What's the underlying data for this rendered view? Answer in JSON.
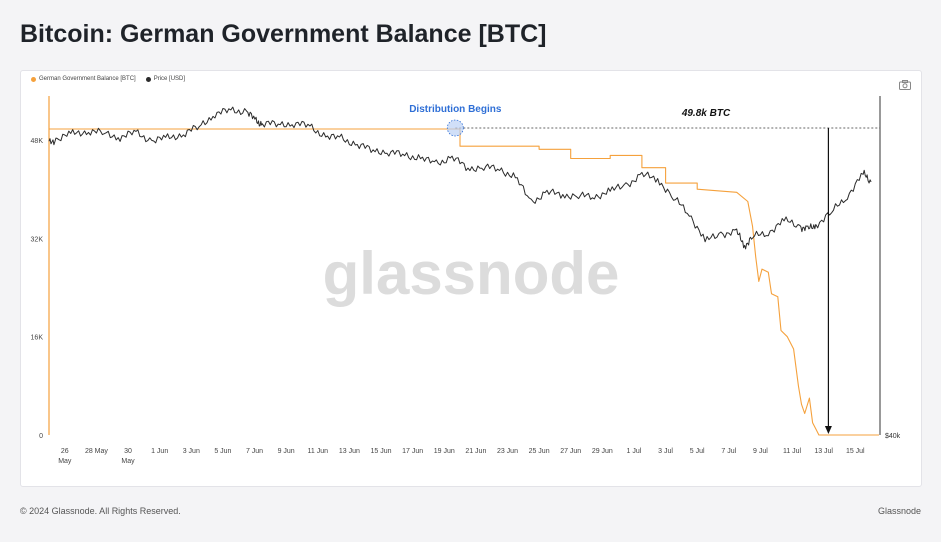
{
  "page": {
    "title": "Bitcoin: German Government Balance [BTC]"
  },
  "footer": {
    "copyright": "© 2024 Glassnode. All Rights Reserved.",
    "brand": "Glassnode"
  },
  "icons": {
    "camera": "camera-icon"
  },
  "colors": {
    "balance": "#f5a13c",
    "price": "#2b2b2b",
    "annotation": "#2f6fd6",
    "watermark": "#d9d9d9"
  },
  "chart_data": {
    "type": "line",
    "watermark": "glassnode",
    "legend": [
      "German Government Balance [BTC]",
      "Price [USD]"
    ],
    "left_axis": {
      "ticks": [
        {
          "value": 0,
          "label": "0"
        },
        {
          "value": 16000,
          "label": "16K"
        },
        {
          "value": 32000,
          "label": "32K"
        },
        {
          "value": 48000,
          "label": "48K"
        }
      ],
      "ylim": [
        0,
        56000
      ]
    },
    "right_axis": {
      "visible_label": "$40k"
    },
    "x_ticks": [
      {
        "day": 0.5,
        "label": "26",
        "sub": "May"
      },
      {
        "day": 2.5,
        "label": "28 May",
        "sub": ""
      },
      {
        "day": 4.5,
        "label": "30",
        "sub": "May"
      },
      {
        "day": 6.5,
        "label": "1 Jun",
        "sub": ""
      },
      {
        "day": 8.5,
        "label": "3 Jun",
        "sub": ""
      },
      {
        "day": 10.5,
        "label": "5 Jun",
        "sub": ""
      },
      {
        "day": 12.5,
        "label": "7 Jun",
        "sub": ""
      },
      {
        "day": 14.5,
        "label": "9 Jun",
        "sub": ""
      },
      {
        "day": 16.5,
        "label": "11 Jun",
        "sub": ""
      },
      {
        "day": 18.5,
        "label": "13 Jun",
        "sub": ""
      },
      {
        "day": 20.5,
        "label": "15 Jun",
        "sub": ""
      },
      {
        "day": 22.5,
        "label": "17 Jun",
        "sub": ""
      },
      {
        "day": 24.5,
        "label": "19 Jun",
        "sub": ""
      },
      {
        "day": 26.5,
        "label": "21 Jun",
        "sub": ""
      },
      {
        "day": 28.5,
        "label": "23 Jun",
        "sub": ""
      },
      {
        "day": 30.5,
        "label": "25 Jun",
        "sub": ""
      },
      {
        "day": 32.5,
        "label": "27 Jun",
        "sub": ""
      },
      {
        "day": 34.5,
        "label": "29 Jun",
        "sub": ""
      },
      {
        "day": 36.5,
        "label": "1 Jul",
        "sub": ""
      },
      {
        "day": 38.5,
        "label": "3 Jul",
        "sub": ""
      },
      {
        "day": 40.5,
        "label": "5 Jul",
        "sub": ""
      },
      {
        "day": 42.5,
        "label": "7 Jul",
        "sub": ""
      },
      {
        "day": 44.5,
        "label": "9 Jul",
        "sub": ""
      },
      {
        "day": 46.5,
        "label": "11 Jul",
        "sub": ""
      },
      {
        "day": 48.5,
        "label": "13 Jul",
        "sub": ""
      },
      {
        "day": 50.5,
        "label": "15 Jul",
        "sub": ""
      }
    ],
    "series": [
      {
        "name": "German Government Balance [BTC]",
        "axis": "left",
        "points": [
          [
            -0.5,
            49800
          ],
          [
            25.5,
            49800
          ],
          [
            25.5,
            47000
          ],
          [
            30.5,
            47000
          ],
          [
            30.5,
            46500
          ],
          [
            32.5,
            46500
          ],
          [
            32.5,
            45000
          ],
          [
            35.0,
            45000
          ],
          [
            35.0,
            45500
          ],
          [
            37.0,
            45500
          ],
          [
            37.0,
            43500
          ],
          [
            38.5,
            43500
          ],
          [
            38.5,
            41000
          ],
          [
            40.5,
            41000
          ],
          [
            40.5,
            40000
          ],
          [
            43.0,
            39500
          ],
          [
            43.7,
            38000
          ],
          [
            44.0,
            34000
          ],
          [
            44.2,
            29000
          ],
          [
            44.4,
            25000
          ],
          [
            44.6,
            27000
          ],
          [
            45.0,
            26500
          ],
          [
            45.2,
            23000
          ],
          [
            45.6,
            22500
          ],
          [
            45.8,
            17000
          ],
          [
            46.2,
            16000
          ],
          [
            46.6,
            14000
          ],
          [
            46.9,
            8000
          ],
          [
            47.1,
            5000
          ],
          [
            47.3,
            3500
          ],
          [
            47.6,
            6000
          ],
          [
            47.8,
            2000
          ],
          [
            48.0,
            1000
          ],
          [
            48.2,
            0
          ],
          [
            52.0,
            0
          ]
        ]
      },
      {
        "name": "Price [USD]",
        "axis": "left",
        "points": [
          [
            -0.5,
            47500
          ],
          [
            0.0,
            48200
          ],
          [
            1.0,
            49000
          ],
          [
            2.0,
            49500
          ],
          [
            3.0,
            49100
          ],
          [
            4.0,
            48500
          ],
          [
            5.0,
            49200
          ],
          [
            6.0,
            47900
          ],
          [
            7.0,
            48300
          ],
          [
            8.0,
            49000
          ],
          [
            9.0,
            50200
          ],
          [
            10.0,
            52300
          ],
          [
            11.0,
            52800
          ],
          [
            12.0,
            52700
          ],
          [
            12.6,
            51000
          ],
          [
            13.0,
            50700
          ],
          [
            14.0,
            50600
          ],
          [
            15.0,
            50700
          ],
          [
            16.0,
            50300
          ],
          [
            17.0,
            48500
          ],
          [
            18.0,
            48300
          ],
          [
            19.0,
            47200
          ],
          [
            20.0,
            46400
          ],
          [
            21.0,
            46000
          ],
          [
            22.0,
            45600
          ],
          [
            23.0,
            45000
          ],
          [
            24.0,
            44200
          ],
          [
            25.0,
            45200
          ],
          [
            26.0,
            43400
          ],
          [
            27.0,
            43600
          ],
          [
            28.0,
            43300
          ],
          [
            29.0,
            41900
          ],
          [
            30.0,
            37900
          ],
          [
            31.0,
            39500
          ],
          [
            32.0,
            39100
          ],
          [
            33.0,
            38900
          ],
          [
            34.0,
            38800
          ],
          [
            35.0,
            39700
          ],
          [
            36.0,
            40700
          ],
          [
            37.0,
            42300
          ],
          [
            38.0,
            41700
          ],
          [
            39.0,
            38500
          ],
          [
            40.0,
            36100
          ],
          [
            41.0,
            31500
          ],
          [
            42.0,
            32800
          ],
          [
            43.0,
            33000
          ],
          [
            43.5,
            30800
          ],
          [
            44.0,
            32200
          ],
          [
            45.0,
            33000
          ],
          [
            46.0,
            34900
          ],
          [
            47.0,
            34000
          ],
          [
            47.5,
            33400
          ],
          [
            48.0,
            34200
          ],
          [
            49.0,
            36200
          ],
          [
            50.0,
            39000
          ],
          [
            51.0,
            42500
          ],
          [
            51.5,
            41200
          ]
        ]
      }
    ],
    "annotations": [
      {
        "label": "Distribution Begins",
        "day": 25.2,
        "value": 49800
      },
      {
        "label": "49.8k BTC",
        "day": 48.8,
        "value": 49800
      }
    ]
  }
}
